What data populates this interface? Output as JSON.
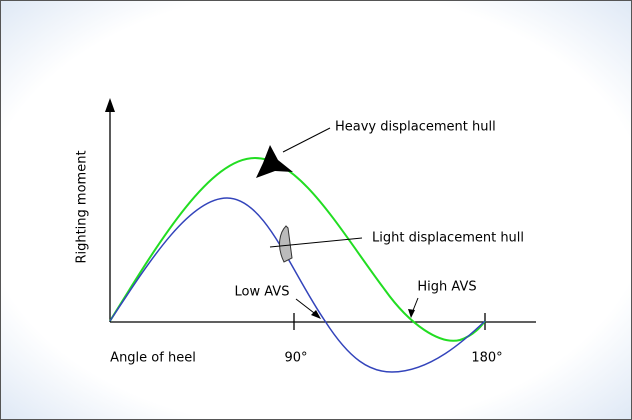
{
  "axes": {
    "y_label": "Righting moment",
    "x_label": "Angle of heel",
    "x_ticks": [
      "90°",
      "180°"
    ]
  },
  "annotations": {
    "heavy": "Heavy displacement hull",
    "light": "Light displacement hull",
    "low_avs": "Low AVS",
    "high_avs": "High AVS"
  }
}
